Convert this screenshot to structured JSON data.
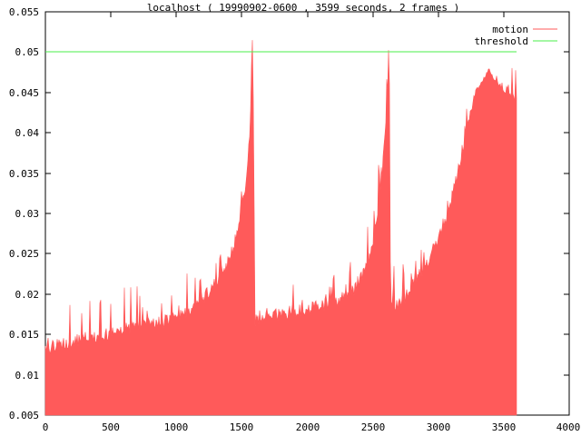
{
  "chart_data": {
    "type": "area",
    "title": "localhost ( 19990902-0600 , 3599 seconds, 2 frames )",
    "xlabel": "",
    "ylabel": "",
    "xlim": [
      0,
      4000
    ],
    "ylim": [
      0.005,
      0.055
    ],
    "x_ticks": [
      0,
      500,
      1000,
      1500,
      2000,
      2500,
      3000,
      3500,
      4000
    ],
    "x_tick_labels": [
      "0",
      "500",
      "1000",
      "1500",
      "2000",
      "2500",
      "3000",
      "3500",
      "4000"
    ],
    "y_ticks": [
      0.005,
      0.01,
      0.015,
      0.02,
      0.025,
      0.03,
      0.035,
      0.04,
      0.045,
      0.05,
      0.055
    ],
    "y_tick_labels": [
      "0.005",
      "0.01",
      "0.015",
      "0.02",
      "0.025",
      "0.03",
      "0.035",
      "0.04",
      "0.045",
      "0.05",
      "0.055"
    ],
    "grid": false,
    "legend_position": "top-right-inside",
    "axis_color": "#000000",
    "background_color": "#ffffff",
    "series": [
      {
        "name": "motion",
        "color": "#ff5a5a",
        "style": "filled-area-spiky",
        "x_range": [
          0,
          3599
        ],
        "points": [
          [
            0,
            0.013
          ],
          [
            50,
            0.0133
          ],
          [
            100,
            0.0135
          ],
          [
            150,
            0.0137
          ],
          [
            200,
            0.0139
          ],
          [
            250,
            0.0141
          ],
          [
            300,
            0.0143
          ],
          [
            350,
            0.0145
          ],
          [
            400,
            0.0146
          ],
          [
            450,
            0.0148
          ],
          [
            500,
            0.015
          ],
          [
            550,
            0.0152
          ],
          [
            600,
            0.0155
          ],
          [
            650,
            0.0157
          ],
          [
            700,
            0.0158
          ],
          [
            750,
            0.0161
          ],
          [
            800,
            0.0163
          ],
          [
            850,
            0.0163
          ],
          [
            900,
            0.0164
          ],
          [
            950,
            0.0166
          ],
          [
            1000,
            0.0168
          ],
          [
            1050,
            0.0172
          ],
          [
            1100,
            0.0178
          ],
          [
            1150,
            0.0184
          ],
          [
            1200,
            0.0192
          ],
          [
            1250,
            0.02
          ],
          [
            1300,
            0.021
          ],
          [
            1350,
            0.0222
          ],
          [
            1400,
            0.0238
          ],
          [
            1450,
            0.0262
          ],
          [
            1500,
            0.03
          ],
          [
            1530,
            0.033
          ],
          [
            1550,
            0.036
          ],
          [
            1565,
            0.0395
          ],
          [
            1575,
            0.043
          ],
          [
            1580,
            0.0462
          ],
          [
            1583,
            0.0515
          ],
          [
            1586,
            0.0458
          ],
          [
            1590,
            0.0428
          ],
          [
            1594,
            0.03
          ],
          [
            1597,
            0.0165
          ],
          [
            1650,
            0.0168
          ],
          [
            1700,
            0.017
          ],
          [
            1750,
            0.0172
          ],
          [
            1800,
            0.0174
          ],
          [
            1850,
            0.0175
          ],
          [
            1900,
            0.0177
          ],
          [
            1950,
            0.0178
          ],
          [
            2000,
            0.018
          ],
          [
            2050,
            0.0182
          ],
          [
            2100,
            0.0184
          ],
          [
            2150,
            0.0186
          ],
          [
            2200,
            0.0189
          ],
          [
            2250,
            0.0192
          ],
          [
            2300,
            0.0196
          ],
          [
            2350,
            0.0202
          ],
          [
            2400,
            0.0212
          ],
          [
            2450,
            0.0228
          ],
          [
            2500,
            0.0256
          ],
          [
            2540,
            0.029
          ],
          [
            2570,
            0.033
          ],
          [
            2590,
            0.037
          ],
          [
            2605,
            0.041
          ],
          [
            2615,
            0.0443
          ],
          [
            2622,
            0.0455
          ],
          [
            2625,
            0.0505
          ],
          [
            2628,
            0.0448
          ],
          [
            2632,
            0.03
          ],
          [
            2636,
            0.018
          ],
          [
            2680,
            0.0185
          ],
          [
            2720,
            0.019
          ],
          [
            2760,
            0.0196
          ],
          [
            2800,
            0.0205
          ],
          [
            2850,
            0.0218
          ],
          [
            2900,
            0.0232
          ],
          [
            2950,
            0.0247
          ],
          [
            3000,
            0.0264
          ],
          [
            3050,
            0.0285
          ],
          [
            3100,
            0.031
          ],
          [
            3150,
            0.0345
          ],
          [
            3200,
            0.0385
          ],
          [
            3250,
            0.042
          ],
          [
            3300,
            0.045
          ],
          [
            3350,
            0.0465
          ],
          [
            3390,
            0.0478
          ],
          [
            3420,
            0.0468
          ],
          [
            3450,
            0.0462
          ],
          [
            3500,
            0.0452
          ],
          [
            3550,
            0.0445
          ],
          [
            3599,
            0.0435
          ]
        ],
        "noise": {
          "seed": 1337,
          "jitter": 0.0016,
          "spike_prob": 0.22,
          "spike_max": 0.0024,
          "calm_above": 0.045
        }
      },
      {
        "name": "threshold",
        "color": "#49ef49",
        "style": "hline",
        "value": 0.05,
        "x_range": [
          0,
          3599
        ]
      }
    ]
  }
}
